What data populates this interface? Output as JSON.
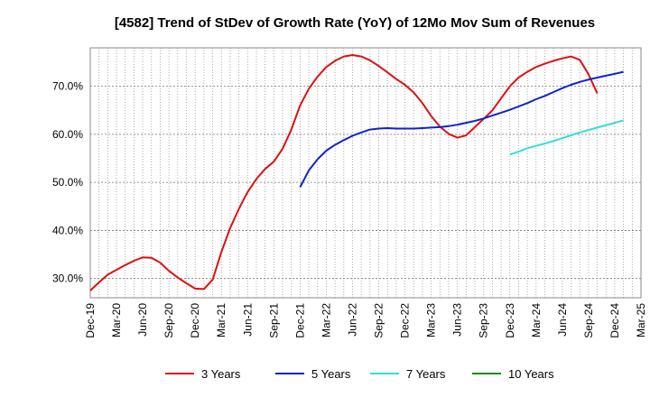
{
  "chart_data": {
    "type": "line",
    "title": "[4582]  Trend of StDev of Growth Rate (YoY) of 12Mo Mov Sum of Revenues",
    "xlabel": "",
    "ylabel": "",
    "x_ticks": [
      "Dec-19",
      "Mar-20",
      "Jun-20",
      "Sep-20",
      "Dec-20",
      "Mar-21",
      "Jun-21",
      "Sep-21",
      "Dec-21",
      "Mar-22",
      "Jun-22",
      "Sep-22",
      "Dec-22",
      "Mar-23",
      "Jun-23",
      "Sep-23",
      "Dec-23",
      "Mar-24",
      "Jun-24",
      "Sep-24",
      "Dec-24",
      "Mar-25"
    ],
    "y_ticks": [
      "30.0%",
      "40.0%",
      "50.0%",
      "60.0%",
      "70.0%"
    ],
    "ylim": [
      26,
      78
    ],
    "grid": true,
    "legend_position": "bottom",
    "series": [
      {
        "name": "3 Years",
        "color": "#dd1111",
        "start_month_index": 0,
        "values": [
          27.5,
          29.2,
          30.8,
          31.8,
          32.8,
          33.7,
          34.4,
          34.3,
          33.3,
          31.6,
          30.2,
          29.0,
          27.9,
          27.8,
          29.8,
          35.5,
          40.5,
          44.5,
          48.0,
          50.7,
          52.8,
          54.3,
          57.0,
          61.0,
          66.0,
          69.5,
          72.0,
          74.0,
          75.3,
          76.2,
          76.5,
          76.2,
          75.4,
          74.2,
          72.9,
          71.5,
          70.3,
          68.7,
          66.5,
          63.8,
          61.6,
          60.1,
          59.3,
          59.8,
          61.5,
          63.2,
          65.0,
          67.5,
          70.0,
          71.8,
          73.0,
          74.0,
          74.7,
          75.3,
          75.8,
          76.2,
          75.5,
          72.5,
          68.5
        ]
      },
      {
        "name": "5 Years",
        "color": "#1122cc",
        "start_month_index": 24,
        "values": [
          49.0,
          52.5,
          54.8,
          56.6,
          57.8,
          58.8,
          59.7,
          60.4,
          61.0,
          61.2,
          61.3,
          61.2,
          61.2,
          61.2,
          61.3,
          61.4,
          61.5,
          61.7,
          62.0,
          62.4,
          62.8,
          63.3,
          63.9,
          64.5,
          65.1,
          65.8,
          66.5,
          67.3,
          68.0,
          68.8,
          69.6,
          70.3,
          70.9,
          71.4,
          71.8,
          72.2,
          72.6,
          73.0
        ]
      },
      {
        "name": "7 Years",
        "color": "#33dddd",
        "start_month_index": 48,
        "values": [
          55.8,
          56.4,
          57.1,
          57.6,
          58.1,
          58.6,
          59.2,
          59.8,
          60.4,
          60.9,
          61.4,
          61.9,
          62.4,
          62.9
        ]
      },
      {
        "name": "10 Years",
        "color": "#228822",
        "start_month_index": 0,
        "values": []
      }
    ]
  }
}
